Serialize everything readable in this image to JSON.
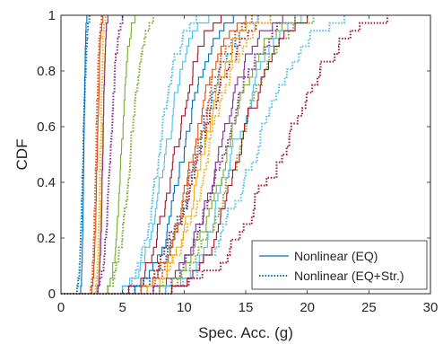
{
  "chart_data": {
    "type": "line",
    "subtype": "empirical CDF (staircase)",
    "xlabel": "Spec. Acc. (g)",
    "ylabel": "CDF",
    "xlim": [
      0,
      30
    ],
    "ylim": [
      0,
      1
    ],
    "xticks": [
      0,
      5,
      10,
      15,
      20,
      25,
      30
    ],
    "yticks": [
      0,
      0.2,
      0.4,
      0.6,
      0.8,
      1
    ],
    "x_tick_labels": [
      "0",
      "5",
      "10",
      "15",
      "20",
      "25",
      "30"
    ],
    "y_tick_labels": [
      "0",
      "0.2",
      "0.4",
      "0.6",
      "0.8",
      "1"
    ],
    "grid": false,
    "box": true,
    "legend": {
      "placement": "bottom-right",
      "entries": [
        {
          "label": "Nonlinear (EQ)",
          "style": "solid",
          "color": "#0072BD"
        },
        {
          "label": "Nonlinear (EQ+Str.)",
          "style": "dotted",
          "color": "#0072BD"
        }
      ]
    },
    "series": [
      {
        "color": "#0072BD",
        "style": "solid",
        "min": 1.6,
        "max": 2.1
      },
      {
        "color": "#0072BD",
        "style": "dotted",
        "min": 1.3,
        "max": 2.3
      },
      {
        "color": "#D95319",
        "style": "solid",
        "min": 2.5,
        "max": 3.4
      },
      {
        "color": "#D95319",
        "style": "dotted",
        "min": 2.4,
        "max": 3.3
      },
      {
        "color": "#EDB120",
        "style": "solid",
        "min": 2.9,
        "max": 3.8
      },
      {
        "color": "#EDB120",
        "style": "dotted",
        "min": 2.8,
        "max": 3.6
      },
      {
        "color": "#7E2F8E",
        "style": "solid",
        "min": 3.0,
        "max": 3.8
      },
      {
        "color": "#7E2F8E",
        "style": "dotted",
        "min": 3.0,
        "max": 5.0
      },
      {
        "color": "#77AC30",
        "style": "solid",
        "min": 3.8,
        "max": 6.0
      },
      {
        "color": "#77AC30",
        "style": "dotted",
        "min": 3.8,
        "max": 7.5
      },
      {
        "color": "#4DBEEE",
        "style": "solid",
        "min": 5.0,
        "max": 12.0
      },
      {
        "color": "#4DBEEE",
        "style": "dotted",
        "min": 5.0,
        "max": 11.0
      },
      {
        "color": "#A2142F",
        "style": "solid",
        "min": 5.5,
        "max": 13.0
      },
      {
        "color": "#A2142F",
        "style": "dotted",
        "min": 5.5,
        "max": 17.0
      },
      {
        "color": "#0072BD",
        "style": "solid",
        "min": 6.0,
        "max": 14.0
      },
      {
        "color": "#0072BD",
        "style": "dotted",
        "min": 6.0,
        "max": 16.0
      },
      {
        "color": "#D95319",
        "style": "solid",
        "min": 6.5,
        "max": 15.0
      },
      {
        "color": "#D95319",
        "style": "dotted",
        "min": 6.5,
        "max": 15.5
      },
      {
        "color": "#EDB120",
        "style": "solid",
        "min": 7.0,
        "max": 16.0
      },
      {
        "color": "#EDB120",
        "style": "dotted",
        "min": 7.0,
        "max": 17.0
      },
      {
        "color": "#7E2F8E",
        "style": "solid",
        "min": 7.5,
        "max": 18.0
      },
      {
        "color": "#7E2F8E",
        "style": "dotted",
        "min": 7.5,
        "max": 19.0
      },
      {
        "color": "#77AC30",
        "style": "solid",
        "min": 8.0,
        "max": 19.0
      },
      {
        "color": "#77AC30",
        "style": "dotted",
        "min": 8.0,
        "max": 20.5
      },
      {
        "color": "#4DBEEE",
        "style": "solid",
        "min": 8.5,
        "max": 19.5
      },
      {
        "color": "#4DBEEE",
        "style": "dotted",
        "min": 8.5,
        "max": 23.0
      },
      {
        "color": "#A2142F",
        "style": "solid",
        "min": 9.0,
        "max": 20.0
      },
      {
        "color": "#A2142F",
        "style": "dotted",
        "min": 9.0,
        "max": 26.5
      }
    ]
  }
}
